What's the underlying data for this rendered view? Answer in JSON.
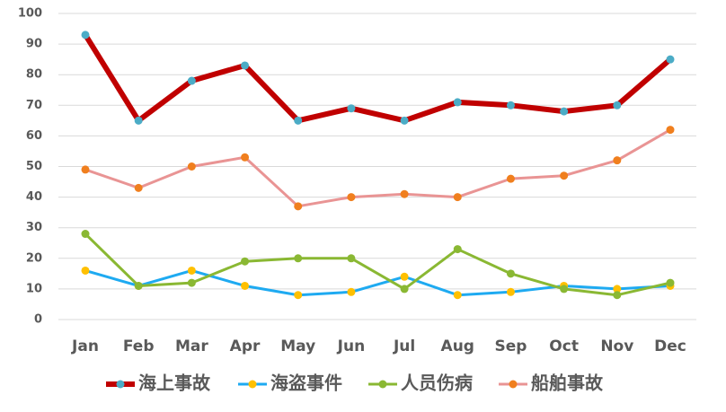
{
  "chart_data": {
    "type": "line",
    "categories": [
      "Jan",
      "Feb",
      "Mar",
      "Apr",
      "May",
      "Jun",
      "Jul",
      "Aug",
      "Sep",
      "Oct",
      "Nov",
      "Dec"
    ],
    "series": [
      {
        "name": "海上事故",
        "color": "#c00000",
        "marker_color": "#4bacc6",
        "line_width": 6,
        "values": [
          93,
          65,
          78,
          83,
          65,
          69,
          65,
          71,
          70,
          68,
          70,
          85
        ]
      },
      {
        "name": "海盗事件",
        "color": "#1eaaf1",
        "marker_color": "#ffc000",
        "line_width": 3,
        "values": [
          16,
          11,
          16,
          11,
          8,
          9,
          14,
          8,
          9,
          11,
          10,
          11
        ]
      },
      {
        "name": "人员伤病",
        "color": "#8ab833",
        "marker_color": "#8ab833",
        "line_width": 3,
        "values": [
          28,
          11,
          12,
          19,
          20,
          20,
          10,
          23,
          15,
          10,
          8,
          12
        ]
      },
      {
        "name": "船舶事故",
        "color": "#e99494",
        "marker_color": "#f07f1e",
        "line_width": 3,
        "values": [
          49,
          43,
          50,
          53,
          37,
          40,
          41,
          40,
          46,
          47,
          52,
          62
        ]
      }
    ],
    "ylim": [
      0,
      100
    ],
    "yticks": [
      0,
      10,
      20,
      30,
      40,
      50,
      60,
      70,
      80,
      90,
      100
    ],
    "grid": true,
    "legend": "bottom"
  }
}
